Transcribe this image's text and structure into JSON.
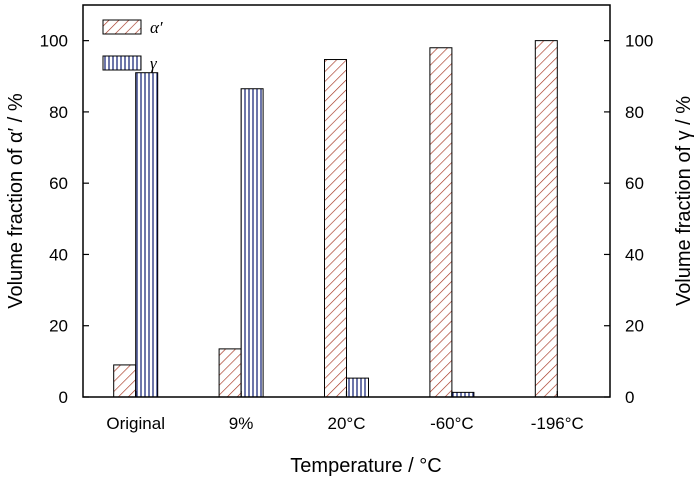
{
  "chart_data": {
    "type": "bar",
    "categories": [
      "Original",
      "9%",
      "20°C",
      "-60°C",
      "-196°C"
    ],
    "series": [
      {
        "name": "α′",
        "values": [
          9,
          13.5,
          94.7,
          98,
          100
        ],
        "pattern": "diagonal-hatch",
        "color": "#a5331f"
      },
      {
        "name": "γ",
        "values": [
          91,
          86.5,
          5.3,
          1.3,
          0
        ],
        "pattern": "vertical-lines",
        "color": "#1e2c7d"
      }
    ],
    "xlabel": "Temperature / °C",
    "ylabel_left": "Volume fraction of α′ / %",
    "ylabel_right": "Volume fraction of γ / %",
    "ylim": [
      0,
      110
    ],
    "yticks": [
      0,
      20,
      40,
      60,
      80,
      100
    ],
    "grid": false,
    "legend_position": "top-left",
    "axis_color": "#000000"
  }
}
